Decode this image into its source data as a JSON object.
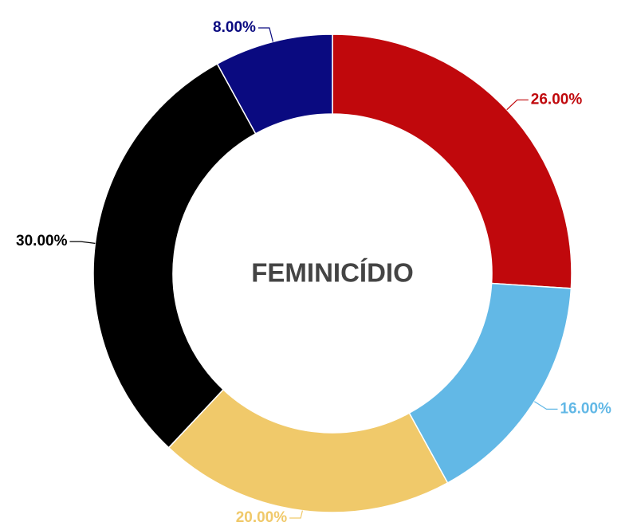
{
  "chart_data": {
    "type": "donut",
    "title": "FEMINICÍDIO",
    "values": [
      26,
      16,
      20,
      30,
      8
    ],
    "value_labels": [
      "26.00%",
      "16.00%",
      "20.00%",
      "30.00%",
      "8.00%"
    ],
    "colors": [
      "#c0080c",
      "#62b8e6",
      "#f0c96a",
      "#000000",
      "#0a0a80"
    ]
  }
}
